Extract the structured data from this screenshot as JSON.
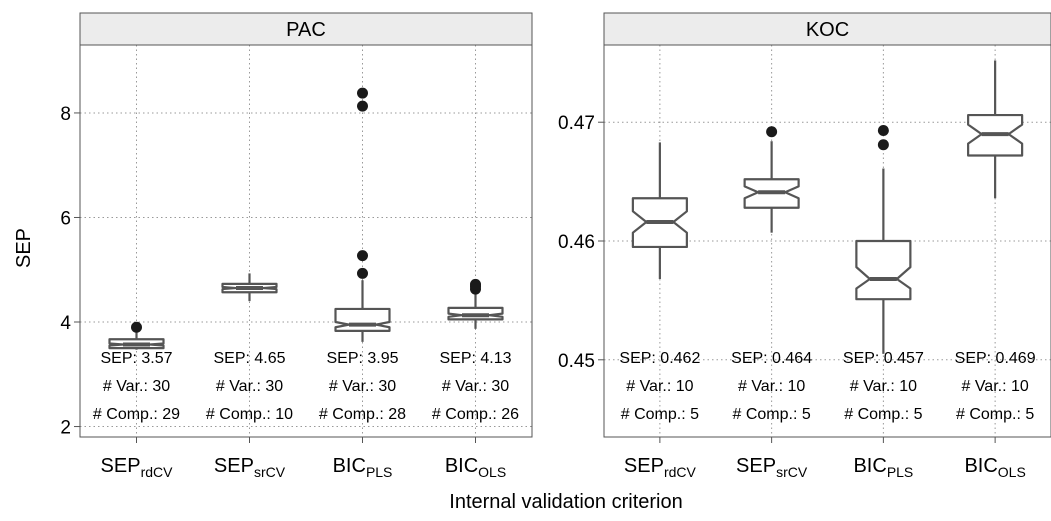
{
  "figure": {
    "ylabel": "SEP",
    "xlabel": "Internal validation criterion"
  },
  "chart_data": [
    {
      "type": "boxplot",
      "panel_title": "PAC",
      "ylim": [
        1.8,
        9.3
      ],
      "yticks": [
        "2",
        "4",
        "6",
        "8"
      ],
      "ytick_values": [
        2,
        4,
        6,
        8
      ],
      "categories": [
        {
          "base": "SEP",
          "sub": "rdCV"
        },
        {
          "base": "SEP",
          "sub": "srCV"
        },
        {
          "base": "BIC",
          "sub": "PLS"
        },
        {
          "base": "BIC",
          "sub": "OLS"
        }
      ],
      "boxes": [
        {
          "whisker_low": 3.47,
          "q1": 3.5,
          "median": 3.57,
          "q3": 3.67,
          "whisker_high": 3.8,
          "notch": [
            3.55,
            3.59
          ],
          "outliers": [
            3.9
          ]
        },
        {
          "whisker_low": 4.4,
          "q1": 4.57,
          "median": 4.65,
          "q3": 4.73,
          "whisker_high": 4.93,
          "notch": [
            4.63,
            4.67
          ],
          "outliers": []
        },
        {
          "whisker_low": 3.62,
          "q1": 3.83,
          "median": 3.95,
          "q3": 4.25,
          "whisker_high": 4.8,
          "notch": [
            3.9,
            4.0
          ],
          "outliers": [
            4.93,
            5.27,
            8.13,
            8.38
          ]
        },
        {
          "whisker_low": 3.87,
          "q1": 4.05,
          "median": 4.13,
          "q3": 4.27,
          "whisker_high": 4.58,
          "notch": [
            4.1,
            4.16
          ],
          "outliers": [
            4.63,
            4.68,
            4.72
          ]
        }
      ],
      "annotations": [
        [
          "SEP: 3.57",
          "# Var.: 30",
          "# Comp.: 29"
        ],
        [
          "SEP: 4.65",
          "# Var.: 30",
          "# Comp.: 10"
        ],
        [
          "SEP: 3.95",
          "# Var.: 30",
          "# Comp.: 28"
        ],
        [
          "SEP: 4.13",
          "# Var.: 30",
          "# Comp.: 26"
        ]
      ]
    },
    {
      "type": "boxplot",
      "panel_title": "KOC",
      "ylim": [
        0.4435,
        0.4765
      ],
      "yticks": [
        "0.45",
        "0.46",
        "0.47"
      ],
      "ytick_values": [
        0.45,
        0.46,
        0.47
      ],
      "categories": [
        {
          "base": "SEP",
          "sub": "rdCV"
        },
        {
          "base": "SEP",
          "sub": "srCV"
        },
        {
          "base": "BIC",
          "sub": "PLS"
        },
        {
          "base": "BIC",
          "sub": "OLS"
        }
      ],
      "boxes": [
        {
          "whisker_low": 0.4568,
          "q1": 0.4595,
          "median": 0.4616,
          "q3": 0.4636,
          "whisker_high": 0.4683,
          "notch": [
            0.4607,
            0.4625
          ],
          "outliers": []
        },
        {
          "whisker_low": 0.4607,
          "q1": 0.4628,
          "median": 0.4641,
          "q3": 0.4652,
          "whisker_high": 0.4684,
          "notch": [
            0.4636,
            0.4646
          ],
          "outliers": [
            0.4692
          ]
        },
        {
          "whisker_low": 0.4505,
          "q1": 0.4551,
          "median": 0.4568,
          "q3": 0.46,
          "whisker_high": 0.4661,
          "notch": [
            0.456,
            0.4578
          ],
          "outliers": [
            0.4681,
            0.4693
          ]
        },
        {
          "whisker_low": 0.4636,
          "q1": 0.4672,
          "median": 0.469,
          "q3": 0.4706,
          "whisker_high": 0.4752,
          "notch": [
            0.4682,
            0.4698
          ],
          "outliers": []
        }
      ],
      "annotations": [
        [
          "SEP: 0.462",
          "# Var.: 10",
          "# Comp.: 5"
        ],
        [
          "SEP: 0.464",
          "# Var.: 10",
          "# Comp.: 5"
        ],
        [
          "SEP: 0.457",
          "# Var.: 10",
          "# Comp.: 5"
        ],
        [
          "SEP: 0.469",
          "# Var.: 10",
          "# Comp.: 5"
        ]
      ]
    }
  ]
}
